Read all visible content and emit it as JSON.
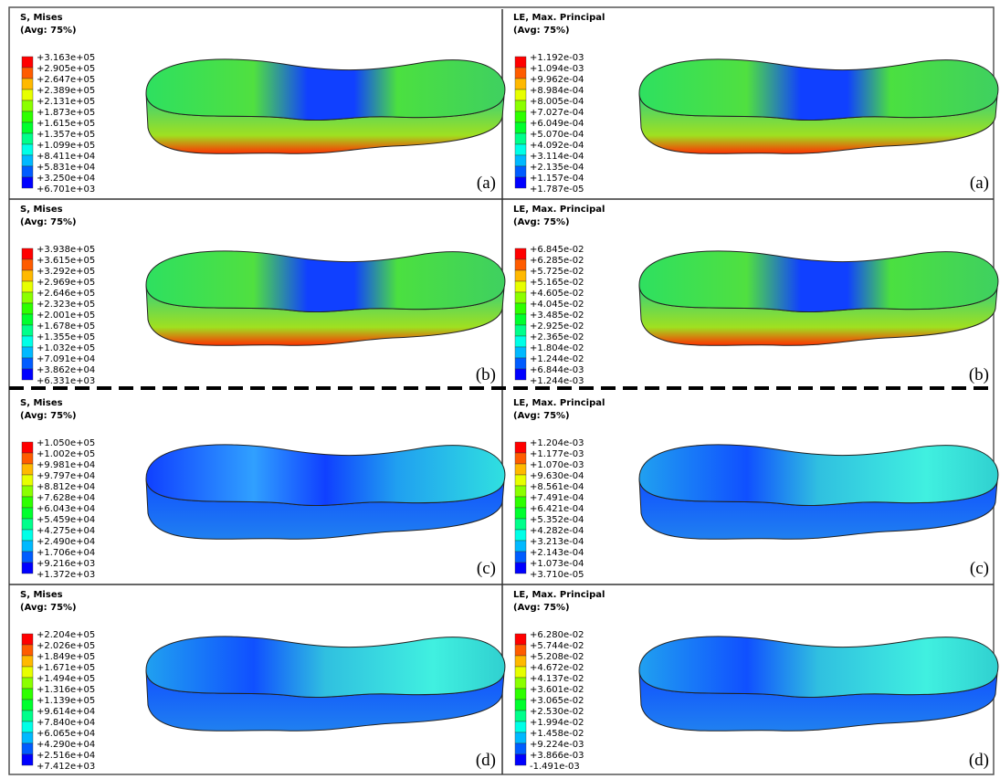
{
  "panels": [
    {
      "title": "S, Mises",
      "subtitle": "(Avg: 75%)",
      "labels": [
        "+3.163e+05",
        "+2.905e+05",
        "+2.647e+05",
        "+2.389e+05",
        "+2.131e+05",
        "+1.873e+05",
        "+1.615e+05",
        "+1.357e+05",
        "+1.099e+05",
        "+8.411e+04",
        "+5.831e+04",
        "+3.250e+04",
        "+6.701e+03"
      ],
      "tag": "(a)"
    },
    {
      "title": "LE, Max. Principal",
      "subtitle": "(Avg: 75%)",
      "labels": [
        "+1.192e-03",
        "+1.094e-03",
        "+9.962e-04",
        "+8.984e-04",
        "+8.005e-04",
        "+7.027e-04",
        "+6.049e-04",
        "+5.070e-04",
        "+4.092e-04",
        "+3.114e-04",
        "+2.135e-04",
        "+1.157e-04",
        "+1.787e-05"
      ],
      "tag": "(a)"
    },
    {
      "title": "S, Mises",
      "subtitle": "(Avg: 75%)",
      "labels": [
        "+3.938e+05",
        "+3.615e+05",
        "+3.292e+05",
        "+2.969e+05",
        "+2.646e+05",
        "+2.323e+05",
        "+2.001e+05",
        "+1.678e+05",
        "+1.355e+05",
        "+1.032e+05",
        "+7.091e+04",
        "+3.862e+04",
        "+6.331e+03"
      ],
      "tag": "(b)"
    },
    {
      "title": "LE, Max. Principal",
      "subtitle": "(Avg: 75%)",
      "labels": [
        "+6.845e-02",
        "+6.285e-02",
        "+5.725e-02",
        "+5.165e-02",
        "+4.605e-02",
        "+4.045e-02",
        "+3.485e-02",
        "+2.925e-02",
        "+2.365e-02",
        "+1.804e-02",
        "+1.244e-02",
        "+6.844e-03",
        "+1.244e-03"
      ],
      "tag": "(b)"
    },
    {
      "title": "S, Mises",
      "subtitle": "(Avg: 75%)",
      "labels": [
        "+1.050e+05",
        "+1.002e+05",
        "+9.981e+04",
        "+9.797e+04",
        "+8.812e+04",
        "+7.628e+04",
        "+6.043e+04",
        "+5.459e+04",
        "+4.275e+04",
        "+2.490e+04",
        "+1.706e+04",
        "+9.216e+03",
        "+1.372e+03"
      ],
      "tag": "(c)"
    },
    {
      "title": "LE, Max. Principal",
      "subtitle": "(Avg: 75%)",
      "labels": [
        "+1.204e-03",
        "+1.177e-03",
        "+1.070e-03",
        "+9.630e-04",
        "+8.561e-04",
        "+7.491e-04",
        "+6.421e-04",
        "+5.352e-04",
        "+4.282e-04",
        "+3.213e-04",
        "+2.143e-04",
        "+1.073e-04",
        "+3.710e-05"
      ],
      "tag": "(c)"
    },
    {
      "title": "S, Mises",
      "subtitle": "(Avg: 75%)",
      "labels": [
        "+2.204e+05",
        "+2.026e+05",
        "+1.849e+05",
        "+1.671e+05",
        "+1.494e+05",
        "+1.316e+05",
        "+1.139e+05",
        "+9.614e+04",
        "+7.840e+04",
        "+6.065e+04",
        "+4.290e+04",
        "+2.516e+04",
        "+7.412e+03"
      ],
      "tag": "(d)"
    },
    {
      "title": "LE, Max. Principal",
      "subtitle": "(Avg: 75%)",
      "labels": [
        "+6.280e-02",
        "+5.744e-02",
        "+5.208e-02",
        "+4.672e-02",
        "+4.137e-02",
        "+3.601e-02",
        "+3.065e-02",
        "+2.530e-02",
        "+1.994e-02",
        "+1.458e-02",
        "+9.224e-03",
        "+3.866e-03",
        "-1.491e-03"
      ],
      "tag": "(d)"
    }
  ]
}
